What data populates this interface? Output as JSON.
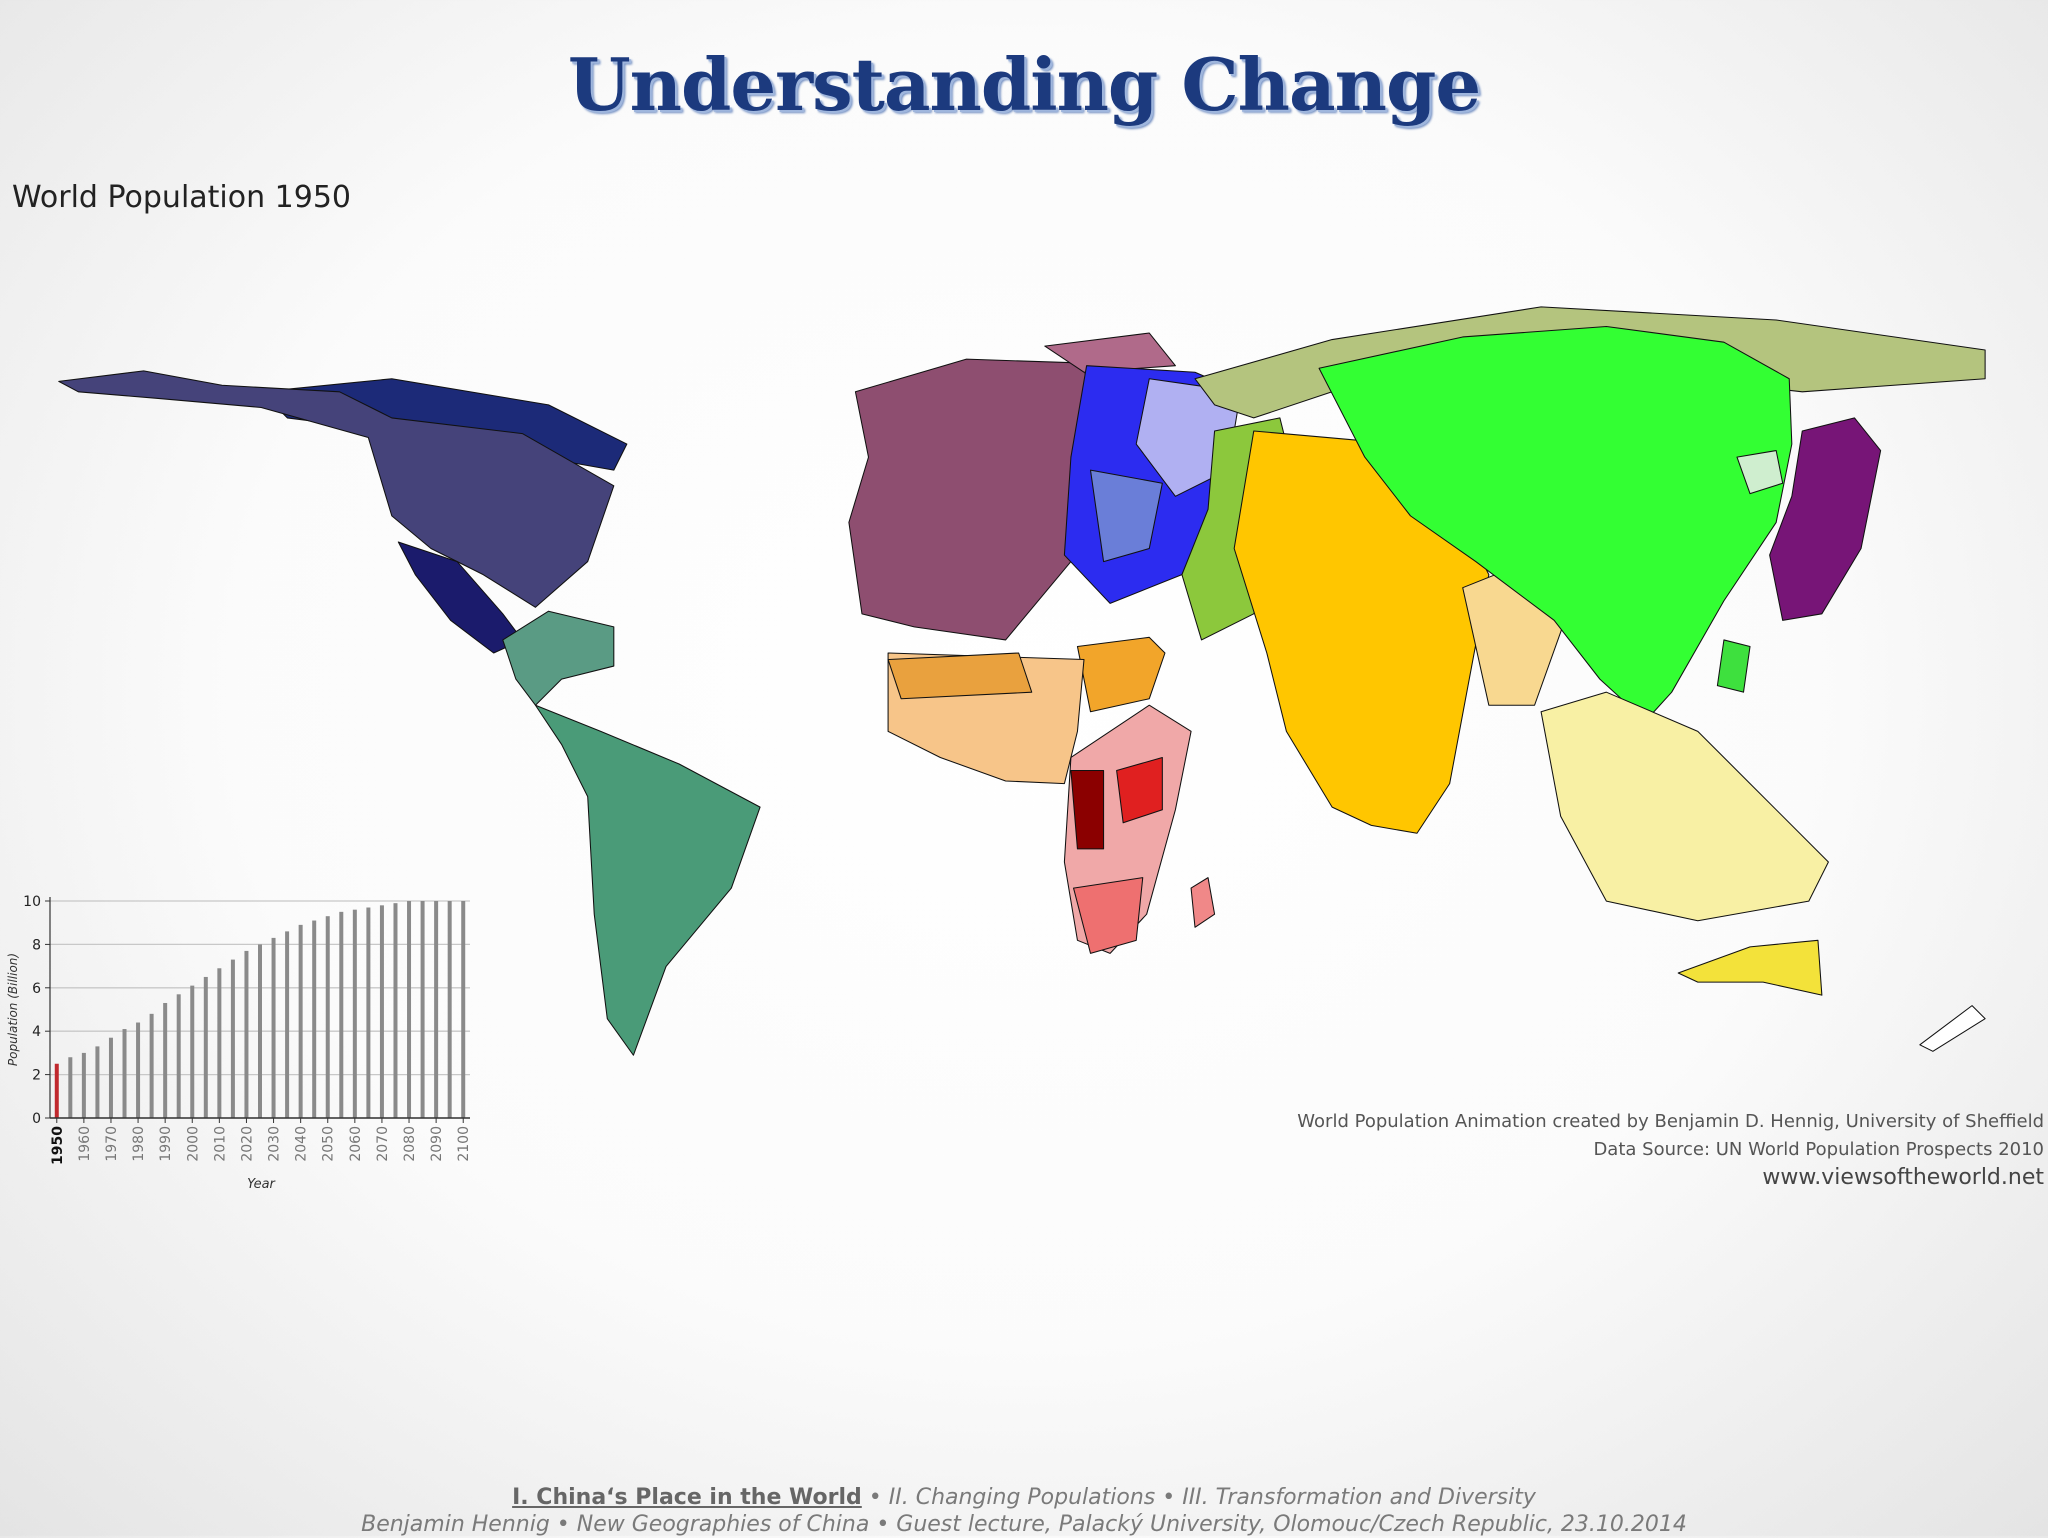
{
  "slide_title": "Understanding Change",
  "map_title": "World Population 1950",
  "chart_data": {
    "type": "bar",
    "x": [
      1950,
      1955,
      1960,
      1965,
      1970,
      1975,
      1980,
      1985,
      1990,
      1995,
      2000,
      2005,
      2010,
      2015,
      2020,
      2025,
      2030,
      2035,
      2040,
      2045,
      2050,
      2055,
      2060,
      2065,
      2070,
      2075,
      2080,
      2085,
      2090,
      2095,
      2100
    ],
    "values": [
      2.5,
      2.8,
      3.0,
      3.3,
      3.7,
      4.1,
      4.4,
      4.8,
      5.3,
      5.7,
      6.1,
      6.5,
      6.9,
      7.3,
      7.7,
      8.0,
      8.3,
      8.6,
      8.9,
      9.1,
      9.3,
      9.5,
      9.6,
      9.7,
      9.8,
      9.9,
      10,
      10,
      10,
      10,
      10
    ],
    "colors": [
      "#c0282d",
      "#8a8a8a",
      "#8a8a8a",
      "#8a8a8a",
      "#8a8a8a",
      "#8a8a8a",
      "#8a8a8a",
      "#8a8a8a",
      "#8a8a8a",
      "#8a8a8a",
      "#8a8a8a",
      "#8a8a8a",
      "#8a8a8a",
      "#8a8a8a",
      "#8a8a8a",
      "#8a8a8a",
      "#8a8a8a",
      "#8a8a8a",
      "#8a8a8a",
      "#8a8a8a",
      "#8a8a8a",
      "#8a8a8a",
      "#8a8a8a",
      "#8a8a8a",
      "#8a8a8a",
      "#8a8a8a",
      "#8a8a8a",
      "#8a8a8a",
      "#8a8a8a",
      "#8a8a8a",
      "#8a8a8a"
    ],
    "xlim": [
      1947.5,
      2102.5
    ],
    "xticks": [
      1950,
      1960,
      1970,
      1980,
      1990,
      2000,
      2010,
      2020,
      2030,
      2040,
      2050,
      2060,
      2070,
      2080,
      2090,
      2100
    ],
    "ylim": [
      0,
      10
    ],
    "yticks": [
      0,
      2,
      4,
      6,
      8,
      10
    ],
    "grid": true,
    "x_label": "Year",
    "y_label": "Population (Billion)"
  },
  "credits": [
    "World Population Animation created by Benjamin D. Hennig, University of Sheffield",
    "Data Source: UN World Population Prospects 2010",
    "www.viewsoftheworld.net"
  ],
  "footer": {
    "line1": [
      "I. China‘s Place in the World",
      " • II. Changing Populations •  III. Transformation and Diversity"
    ],
    "line2": "Benjamin Hennig • New Geographies of China • Guest lecture, Palacký University, Olomouc/Czech Republic, 23.10.2014"
  }
}
